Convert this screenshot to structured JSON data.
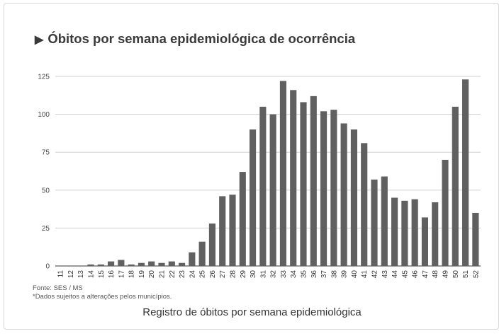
{
  "title": "Óbitos por semana epidemiológica de ocorrência",
  "title_icon": "play-triangle-icon",
  "source": "Fonte: SES / MS",
  "disclaimer": "*Dados sujeitos a alterações pelos municípios.",
  "caption": "Registro de óbitos por semana epidemiológica",
  "bar_color": "#606060",
  "chart_data": {
    "type": "bar",
    "title": "Óbitos por semana epidemiológica de ocorrência",
    "xlabel": "",
    "ylabel": "",
    "ylim": [
      0,
      125
    ],
    "yticks": [
      0,
      25,
      50,
      75,
      100,
      125
    ],
    "grid": true,
    "categories": [
      "11",
      "12",
      "13",
      "14",
      "15",
      "16",
      "17",
      "18",
      "19",
      "20",
      "21",
      "22",
      "23",
      "24",
      "25",
      "26",
      "27",
      "28",
      "29",
      "30",
      "31",
      "32",
      "33",
      "34",
      "35",
      "36",
      "37",
      "38",
      "39",
      "40",
      "41",
      "42",
      "43",
      "44",
      "45",
      "46",
      "47",
      "48",
      "49",
      "50",
      "51",
      "52"
    ],
    "values": [
      0,
      0,
      0,
      1,
      1,
      3,
      4,
      1,
      2,
      3,
      2,
      3,
      2,
      9,
      16,
      28,
      46,
      47,
      62,
      90,
      105,
      100,
      122,
      116,
      108,
      112,
      102,
      103,
      94,
      90,
      81,
      57,
      59,
      45,
      43,
      44,
      32,
      42,
      70,
      105,
      123,
      35
    ]
  }
}
